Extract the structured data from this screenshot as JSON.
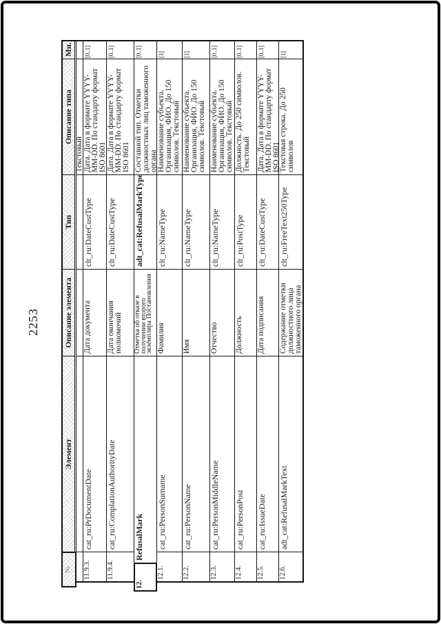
{
  "page": {
    "number": "2253"
  },
  "colors": {
    "border": "#000000",
    "text": "#1a1a1a",
    "paper": "#ffffff"
  },
  "table": {
    "headers": {
      "num": "№",
      "element": "Элемент",
      "element_desc": "Описание элемента",
      "type": "Тип",
      "type_desc": "Описание типа",
      "mult": "Мн."
    },
    "continuation_row": {
      "type_desc": "Текстовый"
    },
    "rows": [
      {
        "num": "11.9.3.",
        "element": "cat_ru:PrDocumentDate",
        "element_desc": "Дата документа",
        "type": "clt_ru:DateCustType",
        "type_desc": "Дата. Дата в формате YYYY-MM-DD. По стандарту формат ISO 8601",
        "mult": "[0..1]",
        "bold": false,
        "outdent": false
      },
      {
        "num": "11.9.4.",
        "element": "cat_ru:ComplationAuthorityDate",
        "element_desc": "Дата окончания полномочий",
        "type": "clt_ru:DateCustType",
        "type_desc": "Дата. Дата в формате YYYY-MM-DD. По стандарту формат ISO 8601",
        "mult": "[0..1]",
        "bold": false,
        "outdent": false
      },
      {
        "num": "12.",
        "element": "RefusalMark",
        "element_desc": "Отметка об отказе в получении второго экземпляра Постановления",
        "type": "adt_cat:RefusalMarkType",
        "type_desc": "Составной тип. Отметки должностных лиц таможенного органа",
        "mult": "[0..1]",
        "bold": true,
        "outdent": true
      },
      {
        "num": "12.1.",
        "element": "cat_ru:PersonSurname",
        "element_desc": "Фамилия",
        "type": "clt_ru:NameType",
        "type_desc": "Наименование субъекта. Организация, ФИО. До 150 символов. Текстовый",
        "mult": "[1]",
        "bold": false,
        "outdent": false
      },
      {
        "num": "12.2.",
        "element": "cat_ru:PersonName",
        "element_desc": "Имя",
        "type": "clt_ru:NameType",
        "type_desc": "Наименование субъекта. Организация, ФИО. До 150 символов. Текстовый",
        "mult": "[1]",
        "bold": false,
        "outdent": false
      },
      {
        "num": "12.3.",
        "element": "cat_ru:PersonMiddleName",
        "element_desc": "Отчество",
        "type": "clt_ru:NameType",
        "type_desc": "Наименование субъекта. Организация, ФИО. До 150 символов. Текстовый",
        "mult": "[0..1]",
        "bold": false,
        "outdent": false
      },
      {
        "num": "12.4.",
        "element": "cat_ru:PersonPost",
        "element_desc": "Должность",
        "type": "clt_ru:PostType",
        "type_desc": "Должность. До 250 символов. Текстовый",
        "mult": "[0..1]",
        "bold": false,
        "outdent": false
      },
      {
        "num": "12.5.",
        "element": "cat_ru:IssueDate",
        "element_desc": "Дата подписания",
        "type": "clt_ru:DateCustType",
        "type_desc": "Дата. Дата в формате YYYY-MM-DD. По стандарту формат ISO 8601",
        "mult": "[0..1]",
        "bold": false,
        "outdent": false
      },
      {
        "num": "12.6.",
        "element": "adt_cat:RefusalMarkText",
        "element_desc": "Содержание отметки должностного лица таможенного органа",
        "type": "clt_ru:FreeText250Type",
        "type_desc": "Текстовая строка. До 250 символов",
        "mult": "[1]",
        "bold": false,
        "outdent": false
      }
    ]
  }
}
